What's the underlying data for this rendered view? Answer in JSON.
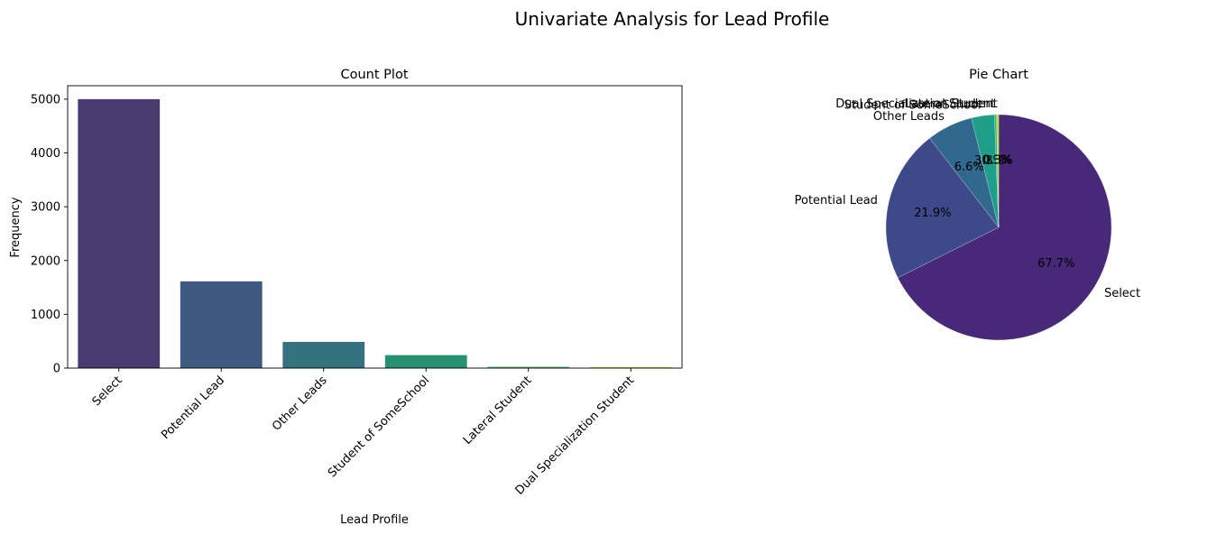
{
  "figure": {
    "suptitle": "Univariate Analysis for Lead Profile"
  },
  "chart_data": [
    {
      "type": "bar",
      "title": "Count Plot",
      "xlabel": "Lead Profile",
      "ylabel": "Frequency",
      "categories": [
        "Select",
        "Potential Lead",
        "Other Leads",
        "Student of SomeSchool",
        "Lateral Student",
        "Dual Specialization Student"
      ],
      "values": [
        5000,
        1613,
        487,
        241,
        24,
        20
      ],
      "ylim": [
        0,
        5250
      ],
      "yticks": [
        0,
        1000,
        2000,
        3000,
        4000,
        5000
      ],
      "colors": [
        "#4a3a72",
        "#3e5a80",
        "#33727e",
        "#2a9073",
        "#4fb45a",
        "#c4d63a"
      ],
      "grid": false
    },
    {
      "type": "pie",
      "title": "Pie Chart",
      "labels": [
        "Select",
        "Potential Lead",
        "Other Leads",
        "Student of SomeSchool",
        "Lateral Student",
        "Dual Specialization Student"
      ],
      "values": [
        67.7,
        21.9,
        6.6,
        3.3,
        0.3,
        0.3
      ],
      "pct_labels": [
        "67.7%",
        "21.9%",
        "6.6%",
        "3.3%",
        "0.3%",
        "0.3%"
      ],
      "colors": [
        "#482878",
        "#3e4989",
        "#31688e",
        "#1f9e89",
        "#35b779",
        "#b8de29"
      ],
      "startangle": 90,
      "direction": "clockwise"
    }
  ]
}
